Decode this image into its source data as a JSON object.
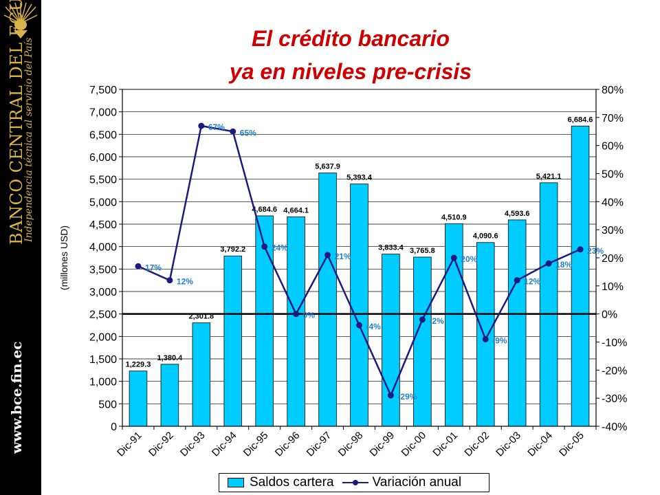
{
  "sidebar": {
    "bank_name": "BANCO CENTRAL DEL ECUADOR",
    "tagline": "Independencia técnica al servicio del País",
    "website": "www.bce.fin.ec",
    "background": "#000000",
    "accent_color": "#d9b24a",
    "logo_icon": "condor-emblem-icon"
  },
  "slide": {
    "title_line1": "El crédito bancario",
    "title_line2": "ya en niveles pre-crisis",
    "title_color": "#cc0000"
  },
  "chart_data": {
    "type": "bar",
    "categories": [
      "Dic-91",
      "Dic-92",
      "Dic-93",
      "Dic-94",
      "Dic-95",
      "Dic-96",
      "Dic-97",
      "Dic-98",
      "Dic-99",
      "Dic-00",
      "Dic-01",
      "Dic-02",
      "Dic-03",
      "Dic-04",
      "Dic-05"
    ],
    "series": [
      {
        "name": "Saldos cartera",
        "kind": "bar",
        "axis": "left",
        "color": "#00ccff",
        "values": [
          1229.3,
          1380.4,
          2301.8,
          3792.2,
          4684.6,
          4664.1,
          5637.9,
          5393.4,
          3833.4,
          3765.8,
          4510.9,
          4090.6,
          4593.6,
          5421.1,
          6684.6
        ],
        "labels": [
          "1,229.3",
          "1,380.4",
          "2,301.8",
          "3,792.2",
          "4,684.6",
          "4,664.1",
          "5,637.9",
          "5,393.4",
          "3,833.4",
          "3,765.8",
          "4,510.9",
          "4,090.6",
          "4,593.6",
          "5,421.1",
          "6,684.6"
        ]
      },
      {
        "name": "Variación anual",
        "kind": "line",
        "axis": "right",
        "color": "#1a1a80",
        "label_color": "#1f7fd0",
        "values": [
          17,
          12,
          67,
          65,
          24,
          0,
          21,
          -4,
          -29,
          -2,
          20,
          -9,
          12,
          18,
          23
        ],
        "labels": [
          "17%",
          "12%",
          "67%",
          "65%",
          "24%",
          "0%",
          "21%",
          "-4%",
          "-29%",
          "-2%",
          "20%",
          "-9%",
          "12%",
          "18%",
          "23%"
        ]
      }
    ],
    "ylabel": "(millones USD)",
    "ylim": [
      0,
      7500
    ],
    "yticks": [
      0,
      500,
      1000,
      1500,
      2000,
      2500,
      3000,
      3500,
      4000,
      4500,
      5000,
      5500,
      6000,
      6500,
      7000,
      7500
    ],
    "ytick_labels": [
      "0",
      "500",
      "1,000",
      "1,500",
      "2,000",
      "2,500",
      "3,000",
      "3,500",
      "4,000",
      "4,500",
      "5,000",
      "5,500",
      "6,000",
      "6,500",
      "7,000",
      "7,500"
    ],
    "y2lim": [
      -40,
      80
    ],
    "y2ticks": [
      -40,
      -30,
      -20,
      -10,
      0,
      10,
      20,
      30,
      40,
      50,
      60,
      70,
      80
    ],
    "y2tick_labels": [
      "-40%",
      "-30%",
      "-20%",
      "-10%",
      "0%",
      "10%",
      "20%",
      "30%",
      "40%",
      "50%",
      "60%",
      "70%",
      "80%"
    ],
    "grid": true,
    "zero_line_right_axis": true,
    "legend_position": "bottom"
  }
}
